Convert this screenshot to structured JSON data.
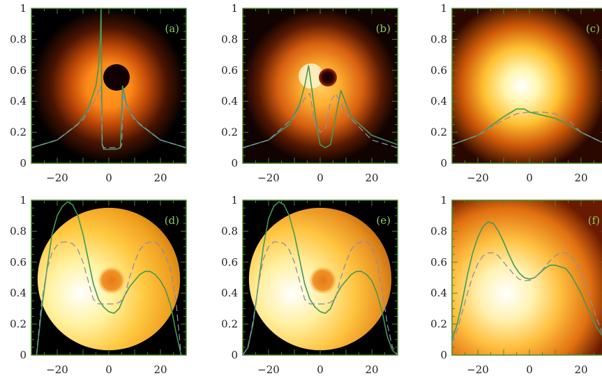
{
  "figure": {
    "panels": [
      {
        "label": "(a)"
      },
      {
        "label": "(b)"
      },
      {
        "label": "(c)"
      },
      {
        "label": "(d)"
      },
      {
        "label": "(e)"
      },
      {
        "label": "(f)"
      }
    ]
  },
  "colors": {
    "frame": "#4a8a2a",
    "solid_curve": "#3e9a56",
    "dashed_curve": "#8a8ab4",
    "background": "#000000"
  },
  "chart_data": [
    {
      "type": "line",
      "panel": "(a)",
      "xlim": [
        -30,
        30
      ],
      "ylim": [
        0,
        1
      ],
      "xticks": [
        -20,
        0,
        20
      ],
      "yticks": [
        0,
        0.2,
        0.4,
        0.6,
        0.8,
        1
      ],
      "xtick_labels": [
        "−20",
        "0",
        "20"
      ],
      "ytick_labels": [
        "0",
        "0.2",
        "0.4",
        "0.6",
        "0.8",
        "1"
      ],
      "image": {
        "kind": "ring",
        "hole": true,
        "glow": "dim"
      },
      "series": [
        {
          "style": "solid",
          "x": [
            -30,
            -20,
            -12,
            -8,
            -5,
            -4,
            -3.3,
            -3,
            -2.6,
            -2,
            0,
            3,
            4.5,
            5,
            5.3,
            6,
            6.5,
            8,
            12,
            20,
            30
          ],
          "y": [
            0.1,
            0.15,
            0.25,
            0.35,
            0.5,
            0.62,
            0.8,
            1.0,
            0.12,
            0.09,
            0.09,
            0.09,
            0.1,
            0.3,
            0.5,
            0.45,
            0.4,
            0.33,
            0.25,
            0.15,
            0.1
          ]
        },
        {
          "style": "dashed",
          "x": [
            -30,
            -20,
            -10,
            -5,
            -3.2,
            -2.5,
            -2,
            0,
            2,
            4.5,
            5,
            5.6,
            6.5,
            10,
            20,
            30
          ],
          "y": [
            0.1,
            0.15,
            0.28,
            0.42,
            0.5,
            0.12,
            0.1,
            0.1,
            0.1,
            0.1,
            0.12,
            0.45,
            0.38,
            0.28,
            0.15,
            0.1
          ]
        }
      ]
    },
    {
      "type": "line",
      "panel": "(b)",
      "xlim": [
        -30,
        30
      ],
      "ylim": [
        0,
        1
      ],
      "xticks": [
        -20,
        0,
        20
      ],
      "yticks": [
        0,
        0.2,
        0.4,
        0.6,
        0.8,
        1
      ],
      "xtick_labels": [
        "−20",
        "0",
        "20"
      ],
      "ytick_labels": [
        "0",
        "0.2",
        "0.4",
        "0.6",
        "0.8",
        "1"
      ],
      "image": {
        "kind": "ring",
        "hole": true,
        "glow": "medium"
      },
      "series": [
        {
          "style": "solid",
          "x": [
            -30,
            -20,
            -12,
            -8,
            -6,
            -4.5,
            -3,
            -1,
            0,
            2,
            4,
            6,
            8,
            12,
            20,
            30
          ],
          "y": [
            0.1,
            0.15,
            0.25,
            0.38,
            0.5,
            0.63,
            0.45,
            0.2,
            0.12,
            0.1,
            0.12,
            0.3,
            0.47,
            0.3,
            0.18,
            0.12
          ]
        },
        {
          "style": "dashed",
          "x": [
            -30,
            -20,
            -10,
            -6,
            -4,
            -2,
            0,
            2,
            4,
            6,
            10,
            20,
            30
          ],
          "y": [
            0.1,
            0.15,
            0.3,
            0.42,
            0.45,
            0.25,
            0.2,
            0.22,
            0.4,
            0.45,
            0.32,
            0.15,
            0.1
          ]
        }
      ]
    },
    {
      "type": "line",
      "panel": "(c)",
      "xlim": [
        -30,
        30
      ],
      "ylim": [
        0,
        1
      ],
      "xticks": [
        -20,
        0,
        20
      ],
      "yticks": [
        0,
        0.2,
        0.4,
        0.6,
        0.8,
        1
      ],
      "xtick_labels": [
        "−20",
        "0",
        "20"
      ],
      "ytick_labels": [
        "0",
        "0.2",
        "0.4",
        "0.6",
        "0.8",
        "1"
      ],
      "image": {
        "kind": "blob",
        "hole": false,
        "glow": "bright"
      },
      "series": [
        {
          "style": "solid",
          "x": [
            -30,
            -20,
            -15,
            -10,
            -5,
            -2,
            0,
            5,
            10,
            15,
            20,
            25,
            30
          ],
          "y": [
            0.12,
            0.18,
            0.24,
            0.3,
            0.35,
            0.35,
            0.33,
            0.31,
            0.29,
            0.25,
            0.2,
            0.16,
            0.12
          ]
        },
        {
          "style": "dashed",
          "x": [
            -30,
            -20,
            -10,
            -5,
            0,
            5,
            10,
            15,
            20,
            25,
            30
          ],
          "y": [
            0.12,
            0.18,
            0.28,
            0.32,
            0.33,
            0.33,
            0.32,
            0.28,
            0.2,
            0.16,
            0.12
          ]
        }
      ]
    },
    {
      "type": "line",
      "panel": "(d)",
      "xlim": [
        -30,
        30
      ],
      "ylim": [
        0,
        1
      ],
      "xticks": [
        -20,
        0,
        20
      ],
      "yticks": [
        0,
        0.2,
        0.4,
        0.6,
        0.8,
        1
      ],
      "xtick_labels": [
        "−20",
        "0",
        "20"
      ],
      "ytick_labels": [
        "0",
        "0.2",
        "0.4",
        "0.6",
        "0.8",
        "1"
      ],
      "image": {
        "kind": "disk",
        "hole": false,
        "glow": "disk"
      },
      "series": [
        {
          "style": "solid",
          "x": [
            -28,
            -26,
            -24,
            -22,
            -20,
            -18,
            -16,
            -14,
            -12,
            -10,
            -8,
            -6,
            -4,
            -2,
            0,
            2,
            4,
            6,
            8,
            10,
            12,
            14,
            16,
            18,
            20,
            22,
            24,
            26,
            28
          ],
          "y": [
            0.0,
            0.3,
            0.55,
            0.78,
            0.9,
            0.96,
            0.99,
            0.97,
            0.9,
            0.78,
            0.62,
            0.46,
            0.36,
            0.31,
            0.28,
            0.27,
            0.3,
            0.38,
            0.44,
            0.48,
            0.52,
            0.54,
            0.54,
            0.52,
            0.48,
            0.42,
            0.32,
            0.15,
            0.0
          ]
        },
        {
          "style": "dashed",
          "x": [
            -28,
            -26,
            -24,
            -22,
            -20,
            -18,
            -16,
            -14,
            -12,
            -10,
            -8,
            -6,
            -4,
            -2,
            0,
            2,
            4,
            6,
            8,
            10,
            12,
            14,
            16,
            18,
            20,
            22,
            24,
            26,
            28
          ],
          "y": [
            0.0,
            0.35,
            0.55,
            0.66,
            0.71,
            0.73,
            0.73,
            0.72,
            0.68,
            0.6,
            0.48,
            0.36,
            0.33,
            0.33,
            0.33,
            0.33,
            0.34,
            0.37,
            0.5,
            0.6,
            0.68,
            0.72,
            0.73,
            0.73,
            0.7,
            0.64,
            0.55,
            0.35,
            0.0
          ]
        }
      ]
    },
    {
      "type": "line",
      "panel": "(e)",
      "xlim": [
        -30,
        30
      ],
      "ylim": [
        0,
        1
      ],
      "xticks": [
        -20,
        0,
        20
      ],
      "yticks": [
        0,
        0.2,
        0.4,
        0.6,
        0.8,
        1
      ],
      "xtick_labels": [
        "−20",
        "0",
        "20"
      ],
      "ytick_labels": [
        "0",
        "0.2",
        "0.4",
        "0.6",
        "0.8",
        "1"
      ],
      "image": {
        "kind": "disk",
        "hole": false,
        "glow": "disk-soft"
      },
      "series": [
        {
          "style": "solid",
          "x": [
            -30,
            -28,
            -26,
            -24,
            -22,
            -20,
            -18,
            -16,
            -14,
            -12,
            -10,
            -8,
            -6,
            -4,
            -2,
            0,
            2,
            4,
            6,
            8,
            10,
            12,
            14,
            16,
            18,
            20,
            22,
            24,
            26,
            28,
            30
          ],
          "y": [
            0.0,
            0.05,
            0.2,
            0.45,
            0.7,
            0.88,
            0.96,
            0.99,
            0.97,
            0.9,
            0.78,
            0.62,
            0.46,
            0.36,
            0.31,
            0.28,
            0.27,
            0.3,
            0.38,
            0.44,
            0.48,
            0.52,
            0.54,
            0.54,
            0.52,
            0.48,
            0.4,
            0.28,
            0.12,
            0.03,
            0.0
          ]
        },
        {
          "style": "dashed",
          "x": [
            -30,
            -28,
            -26,
            -24,
            -22,
            -20,
            -18,
            -16,
            -14,
            -12,
            -10,
            -8,
            -6,
            -4,
            -2,
            0,
            2,
            4,
            6,
            8,
            10,
            12,
            14,
            16,
            18,
            20,
            22,
            24,
            26,
            28,
            30
          ],
          "y": [
            0.0,
            0.05,
            0.22,
            0.45,
            0.62,
            0.7,
            0.73,
            0.73,
            0.72,
            0.68,
            0.6,
            0.48,
            0.36,
            0.33,
            0.33,
            0.33,
            0.33,
            0.34,
            0.37,
            0.5,
            0.6,
            0.68,
            0.72,
            0.73,
            0.73,
            0.7,
            0.6,
            0.42,
            0.2,
            0.05,
            0.0
          ]
        }
      ]
    },
    {
      "type": "line",
      "panel": "(f)",
      "xlim": [
        -30,
        30
      ],
      "ylim": [
        0,
        1
      ],
      "xticks": [
        -20,
        0,
        20
      ],
      "yticks": [
        0,
        0.2,
        0.4,
        0.6,
        0.8,
        1
      ],
      "xtick_labels": [
        "−20",
        "0",
        "20"
      ],
      "ytick_labels": [
        "0",
        "0.2",
        "0.4",
        "0.6",
        "0.8",
        "1"
      ],
      "image": {
        "kind": "blob",
        "hole": false,
        "glow": "blob-wide"
      },
      "series": [
        {
          "style": "solid",
          "x": [
            -30,
            -28,
            -26,
            -24,
            -22,
            -20,
            -18,
            -16,
            -14,
            -12,
            -10,
            -8,
            -6,
            -4,
            -2,
            0,
            2,
            4,
            6,
            8,
            10,
            12,
            14,
            16,
            18,
            20,
            22,
            24,
            26,
            28,
            30
          ],
          "y": [
            0.1,
            0.2,
            0.35,
            0.52,
            0.66,
            0.76,
            0.83,
            0.86,
            0.85,
            0.8,
            0.73,
            0.65,
            0.58,
            0.53,
            0.5,
            0.49,
            0.5,
            0.53,
            0.56,
            0.58,
            0.58,
            0.57,
            0.56,
            0.52,
            0.46,
            0.4,
            0.32,
            0.25,
            0.18,
            0.13,
            0.1
          ]
        },
        {
          "style": "dashed",
          "x": [
            -30,
            -28,
            -26,
            -24,
            -22,
            -20,
            -18,
            -16,
            -14,
            -12,
            -10,
            -8,
            -6,
            -4,
            -2,
            0,
            2,
            4,
            6,
            8,
            10,
            12,
            14,
            16,
            18,
            20,
            22,
            24,
            26,
            28,
            30
          ],
          "y": [
            0.08,
            0.16,
            0.28,
            0.4,
            0.51,
            0.59,
            0.64,
            0.66,
            0.66,
            0.64,
            0.6,
            0.56,
            0.52,
            0.49,
            0.48,
            0.48,
            0.5,
            0.53,
            0.57,
            0.61,
            0.64,
            0.66,
            0.66,
            0.64,
            0.6,
            0.53,
            0.44,
            0.34,
            0.24,
            0.15,
            0.08
          ]
        }
      ]
    }
  ]
}
